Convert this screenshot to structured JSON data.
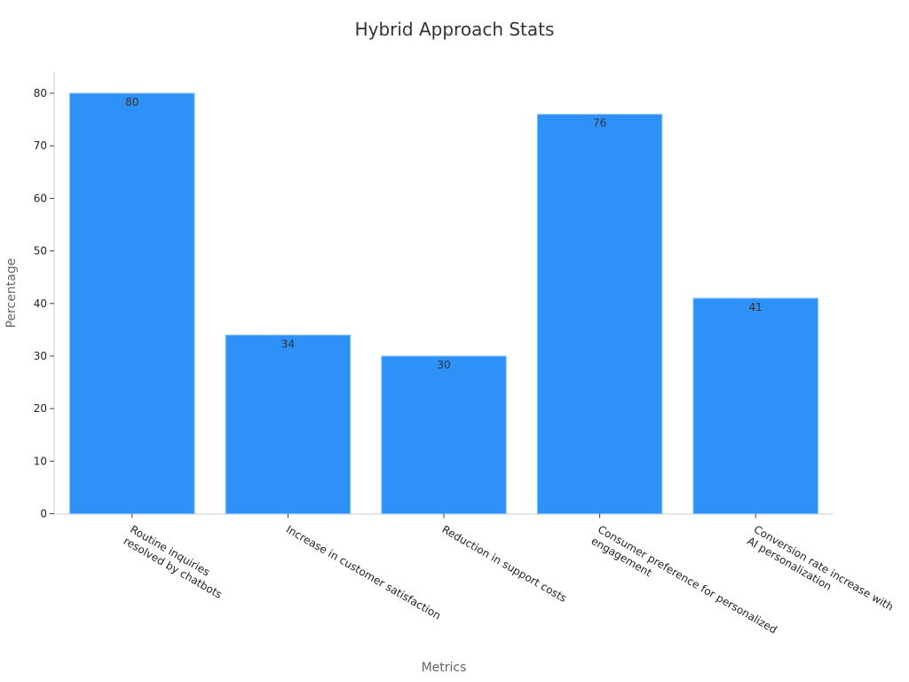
{
  "chart_data": {
    "type": "bar",
    "title": "Hybrid Approach Stats",
    "x_label": "Metrics",
    "y_label": "Percentage",
    "categories": [
      "Routine inquiries\nresolved by chatbots",
      "Increase in customer satisfaction",
      "Reduction in support costs",
      "Consumer preference for personalized\nengagement",
      "Conversion rate increase with\nAI personalization"
    ],
    "values": [
      80,
      34,
      30,
      76,
      41
    ],
    "color": "#2e91f7",
    "ylim": [
      0,
      84
    ],
    "yticks": [
      0,
      10,
      20,
      30,
      40,
      50,
      60,
      70,
      80
    ],
    "grid": false
  }
}
